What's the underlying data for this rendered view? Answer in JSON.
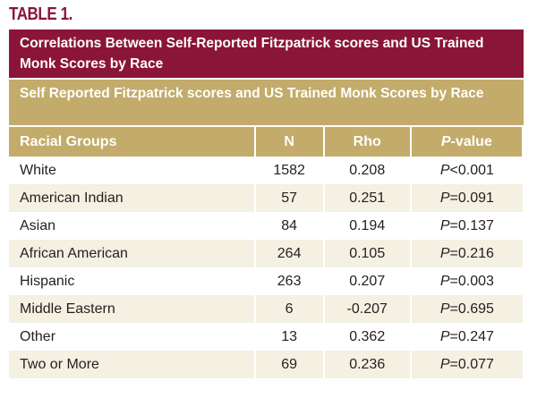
{
  "label": "TABLE 1.",
  "title": "Correlations Between Self-Reported Fitzpatrick scores and US Trained Monk Scores by Race",
  "subtitle": "Self Reported Fitzpatrick scores and US Trained Monk Scores by Race",
  "table": {
    "header": [
      "Racial Groups",
      "N",
      "Rho",
      {
        "symbol": "P",
        "text": "-value"
      }
    ],
    "rows": [
      [
        "White",
        1582,
        0.208,
        {
          "symbol": "P",
          "text": "<0.001"
        }
      ],
      [
        "American Indian",
        57,
        0.251,
        {
          "symbol": "P",
          "text": "=0.091"
        }
      ],
      [
        "Asian",
        84,
        0.194,
        {
          "symbol": "P",
          "text": "=0.137"
        }
      ],
      [
        "African American",
        264,
        0.105,
        {
          "symbol": "P",
          "text": "=0.216"
        }
      ],
      [
        "Hispanic",
        263,
        0.207,
        {
          "symbol": "P",
          "text": "=0.003"
        }
      ],
      [
        "Middle Eastern",
        6,
        -0.207,
        {
          "symbol": "P",
          "text": "=0.695"
        }
      ],
      [
        "Other",
        13,
        0.362,
        {
          "symbol": "P",
          "text": "=0.247"
        }
      ],
      [
        "Two or More",
        69,
        0.236,
        {
          "symbol": "P",
          "text": "=0.077"
        }
      ]
    ]
  }
}
